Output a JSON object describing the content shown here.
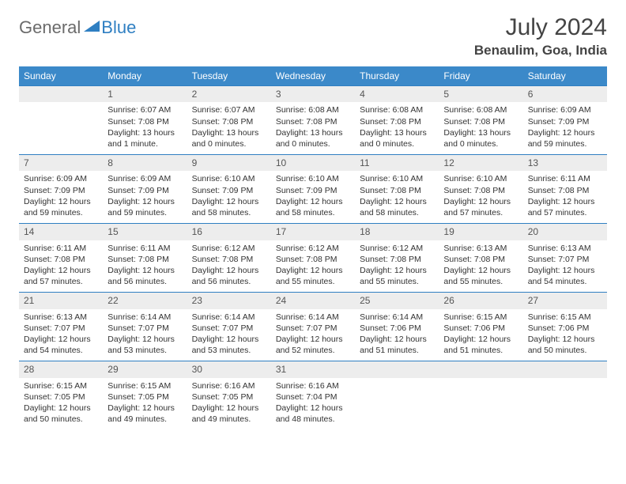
{
  "brand": {
    "gray": "General",
    "blue": "Blue"
  },
  "title": {
    "month": "July 2024",
    "location": "Benaulim, Goa, India"
  },
  "colors": {
    "header_bg": "#3b89c9",
    "rule": "#2f7fc2",
    "daynum_bg": "#ededed"
  },
  "weekdays": [
    "Sunday",
    "Monday",
    "Tuesday",
    "Wednesday",
    "Thursday",
    "Friday",
    "Saturday"
  ],
  "weeks": [
    [
      {
        "n": "",
        "sr": "",
        "ss": "",
        "dl": ""
      },
      {
        "n": "1",
        "sr": "Sunrise: 6:07 AM",
        "ss": "Sunset: 7:08 PM",
        "dl": "Daylight: 13 hours and 1 minute."
      },
      {
        "n": "2",
        "sr": "Sunrise: 6:07 AM",
        "ss": "Sunset: 7:08 PM",
        "dl": "Daylight: 13 hours and 0 minutes."
      },
      {
        "n": "3",
        "sr": "Sunrise: 6:08 AM",
        "ss": "Sunset: 7:08 PM",
        "dl": "Daylight: 13 hours and 0 minutes."
      },
      {
        "n": "4",
        "sr": "Sunrise: 6:08 AM",
        "ss": "Sunset: 7:08 PM",
        "dl": "Daylight: 13 hours and 0 minutes."
      },
      {
        "n": "5",
        "sr": "Sunrise: 6:08 AM",
        "ss": "Sunset: 7:08 PM",
        "dl": "Daylight: 13 hours and 0 minutes."
      },
      {
        "n": "6",
        "sr": "Sunrise: 6:09 AM",
        "ss": "Sunset: 7:09 PM",
        "dl": "Daylight: 12 hours and 59 minutes."
      }
    ],
    [
      {
        "n": "7",
        "sr": "Sunrise: 6:09 AM",
        "ss": "Sunset: 7:09 PM",
        "dl": "Daylight: 12 hours and 59 minutes."
      },
      {
        "n": "8",
        "sr": "Sunrise: 6:09 AM",
        "ss": "Sunset: 7:09 PM",
        "dl": "Daylight: 12 hours and 59 minutes."
      },
      {
        "n": "9",
        "sr": "Sunrise: 6:10 AM",
        "ss": "Sunset: 7:09 PM",
        "dl": "Daylight: 12 hours and 58 minutes."
      },
      {
        "n": "10",
        "sr": "Sunrise: 6:10 AM",
        "ss": "Sunset: 7:09 PM",
        "dl": "Daylight: 12 hours and 58 minutes."
      },
      {
        "n": "11",
        "sr": "Sunrise: 6:10 AM",
        "ss": "Sunset: 7:08 PM",
        "dl": "Daylight: 12 hours and 58 minutes."
      },
      {
        "n": "12",
        "sr": "Sunrise: 6:10 AM",
        "ss": "Sunset: 7:08 PM",
        "dl": "Daylight: 12 hours and 57 minutes."
      },
      {
        "n": "13",
        "sr": "Sunrise: 6:11 AM",
        "ss": "Sunset: 7:08 PM",
        "dl": "Daylight: 12 hours and 57 minutes."
      }
    ],
    [
      {
        "n": "14",
        "sr": "Sunrise: 6:11 AM",
        "ss": "Sunset: 7:08 PM",
        "dl": "Daylight: 12 hours and 57 minutes."
      },
      {
        "n": "15",
        "sr": "Sunrise: 6:11 AM",
        "ss": "Sunset: 7:08 PM",
        "dl": "Daylight: 12 hours and 56 minutes."
      },
      {
        "n": "16",
        "sr": "Sunrise: 6:12 AM",
        "ss": "Sunset: 7:08 PM",
        "dl": "Daylight: 12 hours and 56 minutes."
      },
      {
        "n": "17",
        "sr": "Sunrise: 6:12 AM",
        "ss": "Sunset: 7:08 PM",
        "dl": "Daylight: 12 hours and 55 minutes."
      },
      {
        "n": "18",
        "sr": "Sunrise: 6:12 AM",
        "ss": "Sunset: 7:08 PM",
        "dl": "Daylight: 12 hours and 55 minutes."
      },
      {
        "n": "19",
        "sr": "Sunrise: 6:13 AM",
        "ss": "Sunset: 7:08 PM",
        "dl": "Daylight: 12 hours and 55 minutes."
      },
      {
        "n": "20",
        "sr": "Sunrise: 6:13 AM",
        "ss": "Sunset: 7:07 PM",
        "dl": "Daylight: 12 hours and 54 minutes."
      }
    ],
    [
      {
        "n": "21",
        "sr": "Sunrise: 6:13 AM",
        "ss": "Sunset: 7:07 PM",
        "dl": "Daylight: 12 hours and 54 minutes."
      },
      {
        "n": "22",
        "sr": "Sunrise: 6:14 AM",
        "ss": "Sunset: 7:07 PM",
        "dl": "Daylight: 12 hours and 53 minutes."
      },
      {
        "n": "23",
        "sr": "Sunrise: 6:14 AM",
        "ss": "Sunset: 7:07 PM",
        "dl": "Daylight: 12 hours and 53 minutes."
      },
      {
        "n": "24",
        "sr": "Sunrise: 6:14 AM",
        "ss": "Sunset: 7:07 PM",
        "dl": "Daylight: 12 hours and 52 minutes."
      },
      {
        "n": "25",
        "sr": "Sunrise: 6:14 AM",
        "ss": "Sunset: 7:06 PM",
        "dl": "Daylight: 12 hours and 51 minutes."
      },
      {
        "n": "26",
        "sr": "Sunrise: 6:15 AM",
        "ss": "Sunset: 7:06 PM",
        "dl": "Daylight: 12 hours and 51 minutes."
      },
      {
        "n": "27",
        "sr": "Sunrise: 6:15 AM",
        "ss": "Sunset: 7:06 PM",
        "dl": "Daylight: 12 hours and 50 minutes."
      }
    ],
    [
      {
        "n": "28",
        "sr": "Sunrise: 6:15 AM",
        "ss": "Sunset: 7:05 PM",
        "dl": "Daylight: 12 hours and 50 minutes."
      },
      {
        "n": "29",
        "sr": "Sunrise: 6:15 AM",
        "ss": "Sunset: 7:05 PM",
        "dl": "Daylight: 12 hours and 49 minutes."
      },
      {
        "n": "30",
        "sr": "Sunrise: 6:16 AM",
        "ss": "Sunset: 7:05 PM",
        "dl": "Daylight: 12 hours and 49 minutes."
      },
      {
        "n": "31",
        "sr": "Sunrise: 6:16 AM",
        "ss": "Sunset: 7:04 PM",
        "dl": "Daylight: 12 hours and 48 minutes."
      },
      {
        "n": "",
        "sr": "",
        "ss": "",
        "dl": ""
      },
      {
        "n": "",
        "sr": "",
        "ss": "",
        "dl": ""
      },
      {
        "n": "",
        "sr": "",
        "ss": "",
        "dl": ""
      }
    ]
  ]
}
